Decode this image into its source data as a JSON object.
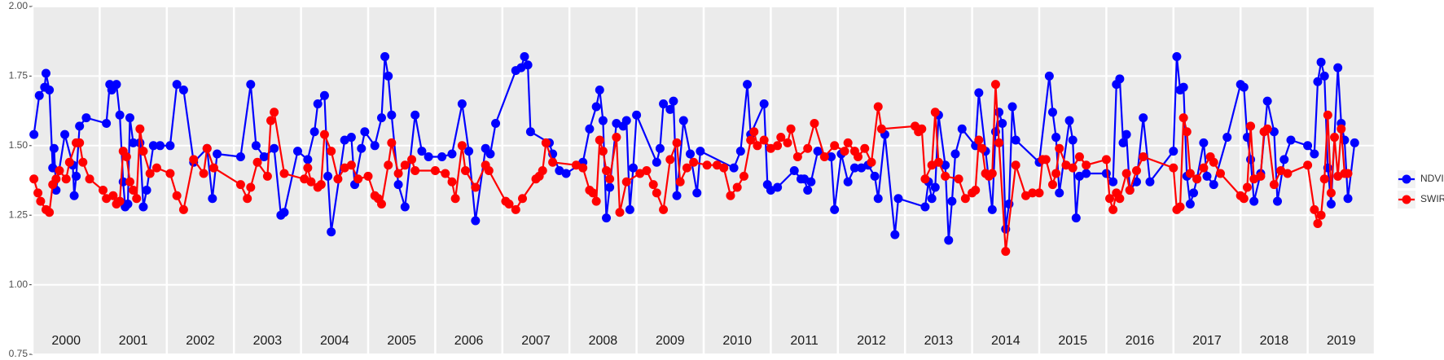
{
  "chart_data": {
    "type": "line",
    "xlim": [
      2000,
      2020
    ],
    "xticks": [
      2000,
      2001,
      2002,
      2003,
      2004,
      2005,
      2006,
      2007,
      2008,
      2009,
      2010,
      2011,
      2012,
      2013,
      2014,
      2015,
      2016,
      2017,
      2018,
      2019,
      2020
    ],
    "year_labels": [
      "2000",
      "2001",
      "2002",
      "2003",
      "2004",
      "2005",
      "2006",
      "2007",
      "2008",
      "2009",
      "2010",
      "2011",
      "2012",
      "2013",
      "2014",
      "2015",
      "2016",
      "2017",
      "2018",
      "2019"
    ],
    "ylim": [
      0.75,
      2.0
    ],
    "yticks": [
      {
        "value": 0.75,
        "label": "0.75"
      },
      {
        "value": 1.0,
        "label": "1.00"
      },
      {
        "value": 1.25,
        "label": "1.25"
      },
      {
        "value": 1.5,
        "label": "1.50"
      },
      {
        "value": 1.75,
        "label": "1.75"
      },
      {
        "value": 2.0,
        "label": "2.00"
      }
    ],
    "grid": true,
    "legend": "right",
    "series": [
      {
        "name": "NDVI",
        "color": "#0000ff",
        "x": [
          2000.02,
          2000.1,
          2000.18,
          2000.2,
          2000.25,
          2000.3,
          2000.32,
          2000.35,
          2000.48,
          2000.6,
          2000.62,
          2000.65,
          2000.7,
          2000.8,
          2001.1,
          2001.15,
          2001.18,
          2001.25,
          2001.3,
          2001.35,
          2001.38,
          2001.42,
          2001.45,
          2001.5,
          2001.6,
          2001.65,
          2001.7,
          2001.8,
          2001.9,
          2002.05,
          2002.15,
          2002.25,
          2002.4,
          2002.6,
          2002.68,
          2002.75,
          2003.1,
          2003.25,
          2003.33,
          2003.45,
          2003.6,
          2003.7,
          2003.75,
          2003.95,
          2004.1,
          2004.2,
          2004.25,
          2004.35,
          2004.4,
          2004.45,
          2004.65,
          2004.75,
          2004.8,
          2004.9,
          2004.95,
          2005.1,
          2005.2,
          2005.25,
          2005.3,
          2005.35,
          2005.45,
          2005.55,
          2005.7,
          2005.8,
          2005.9,
          2006.1,
          2006.25,
          2006.4,
          2006.5,
          2006.6,
          2006.75,
          2006.82,
          2006.9,
          2007.2,
          2007.28,
          2007.33,
          2007.38,
          2007.42,
          2007.7,
          2007.75,
          2007.85,
          2007.95,
          2008.2,
          2008.3,
          2008.4,
          2008.45,
          2008.5,
          2008.55,
          2008.6,
          2008.7,
          2008.8,
          2008.85,
          2008.9,
          2008.95,
          2009.0,
          2009.3,
          2009.35,
          2009.4,
          2009.5,
          2009.55,
          2009.6,
          2009.7,
          2009.8,
          2009.9,
          2009.95,
          2010.45,
          2010.55,
          2010.65,
          2010.7,
          2010.9,
          2010.95,
          2011.0,
          2011.1,
          2011.35,
          2011.45,
          2011.5,
          2011.55,
          2011.6,
          2011.7,
          2011.9,
          2011.95,
          2012.05,
          2012.15,
          2012.25,
          2012.35,
          2012.45,
          2012.55,
          2012.6,
          2012.7,
          2012.85,
          2012.9,
          2013.3,
          2013.35,
          2013.4,
          2013.45,
          2013.5,
          2013.6,
          2013.65,
          2013.7,
          2013.75,
          2013.85,
          2014.05,
          2014.1,
          2014.2,
          2014.3,
          2014.35,
          2014.4,
          2014.45,
          2014.5,
          2014.55,
          2014.6,
          2014.65,
          2015.0,
          2015.15,
          2015.2,
          2015.25,
          2015.3,
          2015.45,
          2015.5,
          2015.55,
          2015.6,
          2015.7,
          2016.0,
          2016.1,
          2016.15,
          2016.2,
          2016.25,
          2016.3,
          2016.35,
          2016.45,
          2016.55,
          2016.65,
          2017.0,
          2017.05,
          2017.1,
          2017.15,
          2017.2,
          2017.25,
          2017.3,
          2017.35,
          2017.45,
          2017.5,
          2017.6,
          2017.8,
          2018.0,
          2018.05,
          2018.1,
          2018.15,
          2018.2,
          2018.3,
          2018.4,
          2018.5,
          2018.55,
          2018.65,
          2018.75,
          2019.0,
          2019.1,
          2019.15,
          2019.2,
          2019.25,
          2019.3,
          2019.35,
          2019.45,
          2019.5,
          2019.55,
          2019.6,
          2019.7
        ],
        "values": [
          1.54,
          1.68,
          1.71,
          1.76,
          1.7,
          1.42,
          1.49,
          1.34,
          1.54,
          1.43,
          1.32,
          1.39,
          1.57,
          1.6,
          1.58,
          1.72,
          1.7,
          1.72,
          1.61,
          1.37,
          1.28,
          1.29,
          1.6,
          1.51,
          1.51,
          1.28,
          1.34,
          1.5,
          1.5,
          1.5,
          1.72,
          1.7,
          1.44,
          1.49,
          1.31,
          1.47,
          1.46,
          1.72,
          1.5,
          1.46,
          1.49,
          1.25,
          1.26,
          1.48,
          1.45,
          1.55,
          1.65,
          1.68,
          1.39,
          1.19,
          1.52,
          1.53,
          1.36,
          1.49,
          1.55,
          1.5,
          1.6,
          1.82,
          1.75,
          1.61,
          1.36,
          1.28,
          1.61,
          1.48,
          1.46,
          1.46,
          1.47,
          1.65,
          1.48,
          1.23,
          1.49,
          1.47,
          1.58,
          1.77,
          1.78,
          1.82,
          1.79,
          1.55,
          1.51,
          1.47,
          1.41,
          1.4,
          1.44,
          1.56,
          1.64,
          1.7,
          1.59,
          1.24,
          1.35,
          1.58,
          1.57,
          1.59,
          1.27,
          1.42,
          1.61,
          1.44,
          1.49,
          1.65,
          1.63,
          1.66,
          1.32,
          1.59,
          1.47,
          1.33,
          1.48,
          1.42,
          1.48,
          1.72,
          1.54,
          1.65,
          1.36,
          1.34,
          1.35,
          1.41,
          1.38,
          1.38,
          1.34,
          1.37,
          1.48,
          1.46,
          1.27,
          1.47,
          1.37,
          1.42,
          1.42,
          1.43,
          1.39,
          1.31,
          1.54,
          1.18,
          1.31,
          1.28,
          1.37,
          1.31,
          1.35,
          1.61,
          1.43,
          1.16,
          1.3,
          1.47,
          1.56,
          1.5,
          1.69,
          1.48,
          1.27,
          1.55,
          1.62,
          1.58,
          1.2,
          1.29,
          1.64,
          1.52,
          1.44,
          1.75,
          1.62,
          1.53,
          1.33,
          1.59,
          1.52,
          1.24,
          1.39,
          1.4,
          1.4,
          1.37,
          1.72,
          1.74,
          1.51,
          1.54,
          1.34,
          1.37,
          1.6,
          1.37,
          1.48,
          1.82,
          1.7,
          1.71,
          1.39,
          1.29,
          1.33,
          1.38,
          1.51,
          1.39,
          1.36,
          1.53,
          1.72,
          1.71,
          1.53,
          1.45,
          1.3,
          1.4,
          1.66,
          1.55,
          1.3,
          1.45,
          1.52,
          1.5,
          1.47,
          1.73,
          1.8,
          1.75,
          1.42,
          1.29,
          1.78,
          1.58,
          1.52,
          1.31,
          1.51
        ]
      },
      {
        "name": "SWIR",
        "color": "#ff0000",
        "x": [
          2000.02,
          2000.08,
          2000.12,
          2000.2,
          2000.25,
          2000.3,
          2000.35,
          2000.4,
          2000.5,
          2000.55,
          2000.65,
          2000.7,
          2000.75,
          2000.85,
          2001.05,
          2001.1,
          2001.2,
          2001.25,
          2001.3,
          2001.35,
          2001.4,
          2001.45,
          2001.5,
          2001.55,
          2001.6,
          2001.65,
          2001.75,
          2001.85,
          2002.05,
          2002.15,
          2002.25,
          2002.4,
          2002.55,
          2002.6,
          2002.7,
          2003.1,
          2003.2,
          2003.25,
          2003.35,
          2003.5,
          2003.55,
          2003.6,
          2003.75,
          2004.05,
          2004.1,
          2004.15,
          2004.25,
          2004.3,
          2004.35,
          2004.45,
          2004.55,
          2004.65,
          2004.75,
          2004.85,
          2005.0,
          2005.1,
          2005.15,
          2005.2,
          2005.3,
          2005.35,
          2005.45,
          2005.55,
          2005.65,
          2005.7,
          2006.0,
          2006.15,
          2006.25,
          2006.3,
          2006.4,
          2006.45,
          2006.6,
          2006.75,
          2006.8,
          2007.05,
          2007.1,
          2007.2,
          2007.3,
          2007.5,
          2007.55,
          2007.6,
          2007.65,
          2007.75,
          2008.1,
          2008.2,
          2008.3,
          2008.35,
          2008.4,
          2008.45,
          2008.5,
          2008.55,
          2008.6,
          2008.7,
          2008.75,
          2008.85,
          2009.05,
          2009.15,
          2009.25,
          2009.3,
          2009.4,
          2009.5,
          2009.6,
          2009.65,
          2009.75,
          2009.85,
          2010.05,
          2010.2,
          2010.3,
          2010.4,
          2010.5,
          2010.6,
          2010.7,
          2010.75,
          2010.8,
          2010.9,
          2011.0,
          2011.1,
          2011.15,
          2011.25,
          2011.3,
          2011.4,
          2011.55,
          2011.65,
          2011.8,
          2011.95,
          2012.1,
          2012.15,
          2012.25,
          2012.3,
          2012.4,
          2012.5,
          2012.6,
          2012.65,
          2013.15,
          2013.2,
          2013.25,
          2013.3,
          2013.4,
          2013.45,
          2013.5,
          2013.6,
          2013.8,
          2013.9,
          2014.0,
          2014.05,
          2014.1,
          2014.15,
          2014.2,
          2014.25,
          2014.3,
          2014.35,
          2014.4,
          2014.5,
          2014.65,
          2014.8,
          2014.9,
          2015.0,
          2015.05,
          2015.1,
          2015.2,
          2015.25,
          2015.3,
          2015.4,
          2015.5,
          2015.6,
          2015.7,
          2016.0,
          2016.05,
          2016.1,
          2016.15,
          2016.2,
          2016.3,
          2016.35,
          2016.45,
          2016.55,
          2017.0,
          2017.05,
          2017.1,
          2017.15,
          2017.2,
          2017.25,
          2017.35,
          2017.45,
          2017.55,
          2017.6,
          2017.7,
          2018.0,
          2018.05,
          2018.1,
          2018.15,
          2018.2,
          2018.3,
          2018.35,
          2018.4,
          2018.5,
          2018.6,
          2018.7,
          2019.0,
          2019.1,
          2019.15,
          2019.2,
          2019.25,
          2019.3,
          2019.35,
          2019.4,
          2019.45,
          2019.5,
          2019.55,
          2019.6
        ],
        "values": [
          1.38,
          1.33,
          1.3,
          1.27,
          1.26,
          1.36,
          1.38,
          1.41,
          1.38,
          1.44,
          1.51,
          1.51,
          1.44,
          1.38,
          1.34,
          1.31,
          1.32,
          1.29,
          1.3,
          1.48,
          1.46,
          1.37,
          1.34,
          1.31,
          1.56,
          1.48,
          1.4,
          1.42,
          1.4,
          1.32,
          1.27,
          1.45,
          1.4,
          1.49,
          1.42,
          1.36,
          1.31,
          1.35,
          1.44,
          1.39,
          1.59,
          1.62,
          1.4,
          1.38,
          1.42,
          1.37,
          1.35,
          1.36,
          1.54,
          1.48,
          1.38,
          1.42,
          1.43,
          1.38,
          1.39,
          1.32,
          1.31,
          1.29,
          1.43,
          1.51,
          1.4,
          1.43,
          1.45,
          1.41,
          1.41,
          1.4,
          1.37,
          1.31,
          1.5,
          1.41,
          1.35,
          1.43,
          1.41,
          1.3,
          1.29,
          1.27,
          1.31,
          1.38,
          1.39,
          1.41,
          1.51,
          1.44,
          1.43,
          1.42,
          1.34,
          1.33,
          1.3,
          1.52,
          1.48,
          1.41,
          1.38,
          1.53,
          1.26,
          1.37,
          1.4,
          1.41,
          1.36,
          1.33,
          1.27,
          1.45,
          1.51,
          1.37,
          1.42,
          1.44,
          1.43,
          1.43,
          1.42,
          1.32,
          1.35,
          1.39,
          1.52,
          1.55,
          1.5,
          1.52,
          1.49,
          1.5,
          1.53,
          1.51,
          1.56,
          1.46,
          1.49,
          1.58,
          1.46,
          1.5,
          1.48,
          1.51,
          1.48,
          1.46,
          1.49,
          1.44,
          1.64,
          1.56,
          1.57,
          1.55,
          1.56,
          1.38,
          1.43,
          1.62,
          1.44,
          1.39,
          1.38,
          1.31,
          1.33,
          1.34,
          1.52,
          1.49,
          1.4,
          1.39,
          1.4,
          1.72,
          1.51,
          1.12,
          1.43,
          1.32,
          1.33,
          1.33,
          1.45,
          1.45,
          1.36,
          1.4,
          1.49,
          1.43,
          1.42,
          1.46,
          1.43,
          1.45,
          1.31,
          1.27,
          1.33,
          1.31,
          1.4,
          1.34,
          1.41,
          1.46,
          1.42,
          1.27,
          1.28,
          1.6,
          1.55,
          1.4,
          1.38,
          1.42,
          1.46,
          1.44,
          1.4,
          1.32,
          1.31,
          1.35,
          1.57,
          1.38,
          1.39,
          1.55,
          1.56,
          1.36,
          1.41,
          1.4,
          1.43,
          1.27,
          1.22,
          1.25,
          1.38,
          1.61,
          1.33,
          1.53,
          1.39,
          1.56,
          1.4,
          1.4
        ]
      }
    ]
  }
}
